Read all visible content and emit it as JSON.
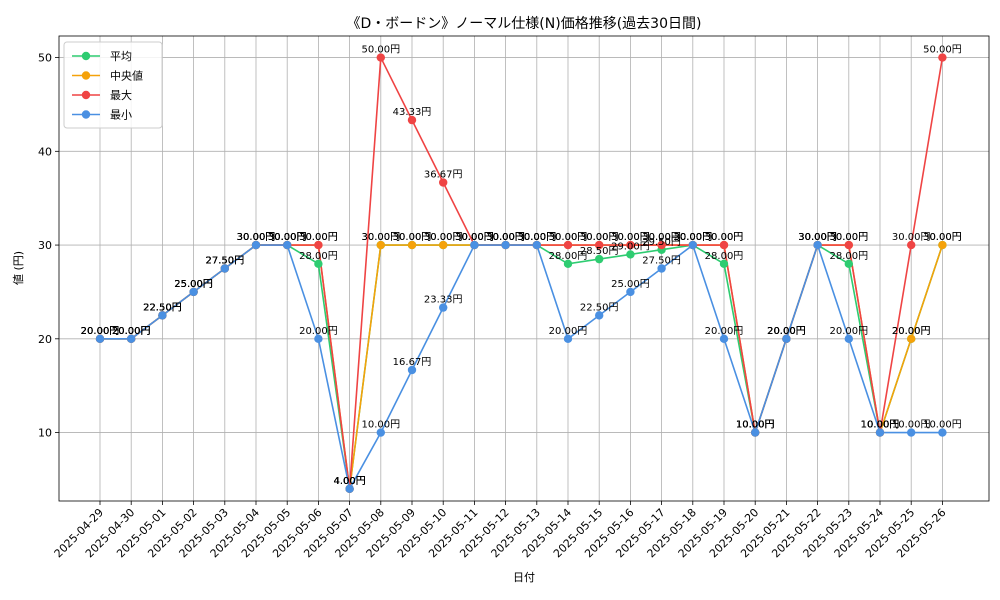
{
  "chart_data": {
    "type": "line",
    "title": "《D・ボードン》ノーマル仕様(N)価格推移(過去30日間)",
    "xlabel": "日付",
    "ylabel": "値 (円)",
    "ylim": [
      2.7,
      52.3
    ],
    "yticks": [
      "10",
      "20",
      "30",
      "40",
      "50"
    ],
    "grid": true,
    "legend_position": "top-left",
    "unit_suffix": "円",
    "categories": [
      "2025-04-29",
      "2025-04-30",
      "2025-05-01",
      "2025-05-02",
      "2025-05-03",
      "2025-05-04",
      "2025-05-05",
      "2025-05-06",
      "2025-05-07",
      "2025-05-08",
      "2025-05-09",
      "2025-05-10",
      "2025-05-11",
      "2025-05-12",
      "2025-05-13",
      "2025-05-14",
      "2025-05-15",
      "2025-05-16",
      "2025-05-17",
      "2025-05-18",
      "2025-05-19",
      "2025-05-20",
      "2025-05-21",
      "2025-05-22",
      "2025-05-23",
      "2025-05-24",
      "2025-05-25",
      "2025-05-26"
    ],
    "series": [
      {
        "name": "平均",
        "color": "#2ecc71",
        "values": [
          20,
          20,
          22.5,
          25,
          27.5,
          30,
          30,
          28,
          4,
          30,
          30,
          30,
          30,
          30,
          30,
          28,
          28.5,
          29,
          29.5,
          30,
          28,
          10,
          20,
          30,
          28,
          10,
          20,
          30
        ]
      },
      {
        "name": "中央値",
        "color": "#f5a20a",
        "values": [
          20,
          20,
          22.5,
          25,
          27.5,
          30,
          30,
          30,
          4,
          30,
          30,
          30,
          30,
          30,
          30,
          30,
          30,
          30,
          30,
          30,
          30,
          10,
          20,
          30,
          30,
          10,
          20,
          30
        ]
      },
      {
        "name": "最大",
        "color": "#ef4444",
        "values": [
          20,
          20,
          22.5,
          25,
          27.5,
          30,
          30,
          30,
          4,
          50,
          43.33,
          36.67,
          30,
          30,
          30,
          30,
          30,
          30,
          30,
          30,
          30,
          10,
          20,
          30,
          30,
          10,
          30,
          50
        ]
      },
      {
        "name": "最小",
        "color": "#4a90e2",
        "values": [
          20,
          20,
          22.5,
          25,
          27.5,
          30,
          30,
          20,
          4,
          10,
          16.67,
          23.33,
          30,
          30,
          30,
          20,
          22.5,
          25,
          27.5,
          30,
          20,
          10,
          20,
          30,
          20,
          10,
          10,
          10
        ]
      }
    ]
  }
}
